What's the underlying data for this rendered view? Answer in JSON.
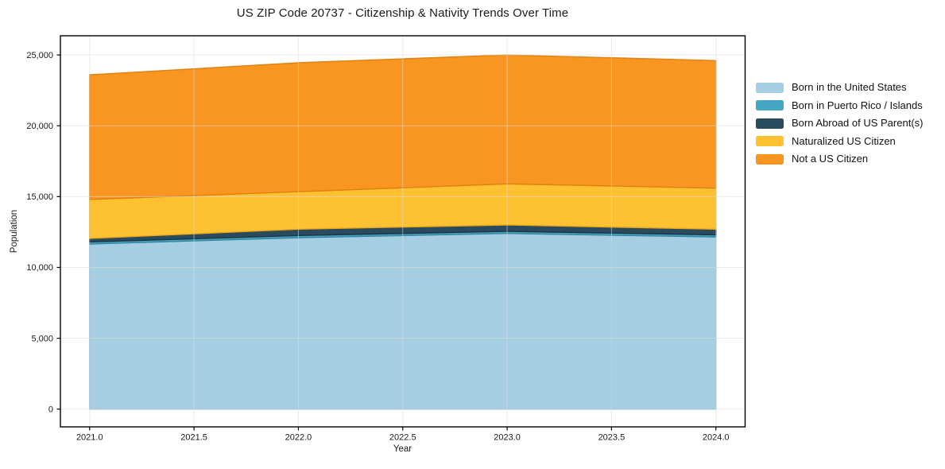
{
  "chart_data": {
    "type": "area",
    "stacked": true,
    "title": "US ZIP Code 20737 - Citizenship & Nativity Trends Over Time",
    "xlabel": "Year",
    "ylabel": "Population",
    "x": [
      2021,
      2022,
      2023,
      2024
    ],
    "series": [
      {
        "name": "Born in the United States",
        "color": "#a6cee3",
        "edge_color": "#82b9d4",
        "values": [
          11650,
          12100,
          12400,
          12150
        ]
      },
      {
        "name": "Born in Puerto Rico / Islands",
        "color": "#45a7c3",
        "edge_color": "#35869e",
        "values": [
          150,
          150,
          150,
          150
        ]
      },
      {
        "name": "Born Abroad of US Parent(s)",
        "color": "#2a4a5e",
        "edge_color": "#1d3545",
        "values": [
          250,
          450,
          450,
          400
        ]
      },
      {
        "name": "Naturalized US Citizen",
        "color": "#fdc132",
        "edge_color": "#eda71a",
        "values": [
          2750,
          2650,
          2900,
          2900
        ]
      },
      {
        "name": "Not a US Citizen",
        "color": "#f89621",
        "edge_color": "#e0800f",
        "values": [
          8800,
          9100,
          9100,
          9000
        ]
      }
    ],
    "stacked_totals": [
      23600,
      24450,
      25000,
      24600
    ],
    "xlim": [
      2020.86,
      2024.14
    ],
    "ylim": [
      -1255,
      26355
    ],
    "x_ticks": [
      {
        "v": 2021.0,
        "label": "2021.0"
      },
      {
        "v": 2021.5,
        "label": "2021.5"
      },
      {
        "v": 2022.0,
        "label": "2022.0"
      },
      {
        "v": 2022.5,
        "label": "2022.5"
      },
      {
        "v": 2023.0,
        "label": "2023.0"
      },
      {
        "v": 2023.5,
        "label": "2023.5"
      },
      {
        "v": 2024.0,
        "label": "2024.0"
      }
    ],
    "y_ticks": [
      {
        "v": 0,
        "label": "0"
      },
      {
        "v": 5000,
        "label": "5,000"
      },
      {
        "v": 10000,
        "label": "10,000"
      },
      {
        "v": 15000,
        "label": "15,000"
      },
      {
        "v": 20000,
        "label": "20,000"
      },
      {
        "v": 25000,
        "label": "25,000"
      }
    ],
    "grid": true,
    "legend_position": "right-outside",
    "colors": {
      "grid_line": "#dcdcdc",
      "spine": "#000000",
      "tick_text": "#1a1a1a",
      "background": "#ffffff"
    }
  }
}
